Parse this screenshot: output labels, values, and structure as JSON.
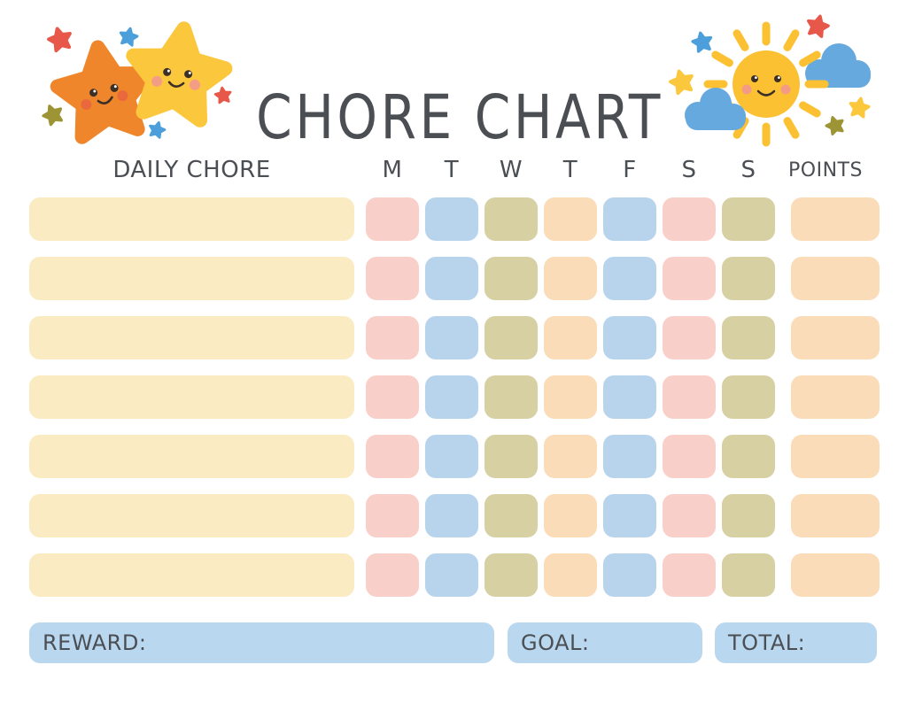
{
  "page": {
    "title": "CHORE CHART"
  },
  "palette": {
    "text": "#4B4E53",
    "cream": "#FBEBC2",
    "pink": "#F9CFC9",
    "blue": "#B8D4EC",
    "olive": "#D6D0A3",
    "peach": "#FBDCB8",
    "footer_blue": "#B9D7EF",
    "star_orange": "#F0862B",
    "star_yellow": "#FBC73C",
    "sun_yellow": "#FBC132",
    "cloud_blue": "#66A9DF",
    "accent_red": "#E8584A",
    "accent_blue": "#4D9FDB",
    "accent_olive": "#9C9435",
    "face_dark": "#3B2F26",
    "blush_orange": "#E8643F",
    "blush_pink": "#F2978E"
  },
  "table": {
    "chore_header": "DAILY CHORE",
    "day_headers": [
      "M",
      "T",
      "W",
      "T",
      "F",
      "S",
      "S"
    ],
    "points_header": "POINTS",
    "chore_cell_color": "cream",
    "day_cell_colors": [
      "pink",
      "blue",
      "olive",
      "peach",
      "blue",
      "pink",
      "olive"
    ],
    "points_cell_color": "peach",
    "rows": [
      {
        "chore": "",
        "days": [
          "",
          "",
          "",
          "",
          "",
          "",
          ""
        ],
        "points": ""
      },
      {
        "chore": "",
        "days": [
          "",
          "",
          "",
          "",
          "",
          "",
          ""
        ],
        "points": ""
      },
      {
        "chore": "",
        "days": [
          "",
          "",
          "",
          "",
          "",
          "",
          ""
        ],
        "points": ""
      },
      {
        "chore": "",
        "days": [
          "",
          "",
          "",
          "",
          "",
          "",
          ""
        ],
        "points": ""
      },
      {
        "chore": "",
        "days": [
          "",
          "",
          "",
          "",
          "",
          "",
          ""
        ],
        "points": ""
      },
      {
        "chore": "",
        "days": [
          "",
          "",
          "",
          "",
          "",
          "",
          ""
        ],
        "points": ""
      },
      {
        "chore": "",
        "days": [
          "",
          "",
          "",
          "",
          "",
          "",
          ""
        ],
        "points": ""
      }
    ]
  },
  "footer": {
    "fields": [
      {
        "label": "REWARD:",
        "value": ""
      },
      {
        "label": "GOAL:",
        "value": ""
      },
      {
        "label": "TOTAL:",
        "value": ""
      }
    ]
  },
  "decorations": {
    "left": "two-smiling-stars-with-sparkles",
    "right": "smiling-sun-with-clouds-and-sparkles"
  }
}
